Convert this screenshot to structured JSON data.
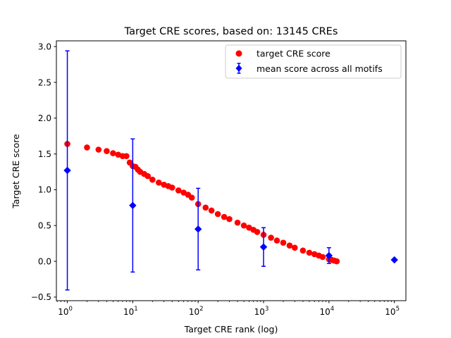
{
  "chart_data": {
    "type": "scatter",
    "title": "Target CRE scores, based on: 13145 CREs",
    "xlabel": "Target CRE rank (log)",
    "ylabel": "Target CRE score",
    "x_scale": "log",
    "xlim": [
      0.68,
      150000
    ],
    "ylim": [
      -0.55,
      3.08
    ],
    "x_ticks": [
      {
        "value": 1,
        "base": "10",
        "exp": "0"
      },
      {
        "value": 10,
        "base": "10",
        "exp": "1"
      },
      {
        "value": 100,
        "base": "10",
        "exp": "2"
      },
      {
        "value": 1000,
        "base": "10",
        "exp": "3"
      },
      {
        "value": 10000,
        "base": "10",
        "exp": "4"
      },
      {
        "value": 100000,
        "base": "10",
        "exp": "5"
      }
    ],
    "y_ticks": [
      {
        "value": -0.5,
        "label": "−0.5"
      },
      {
        "value": 0.0,
        "label": "0.0"
      },
      {
        "value": 0.5,
        "label": "0.5"
      },
      {
        "value": 1.0,
        "label": "1.0"
      },
      {
        "value": 1.5,
        "label": "1.5"
      },
      {
        "value": 2.0,
        "label": "2.0"
      },
      {
        "value": 2.5,
        "label": "2.5"
      },
      {
        "value": 3.0,
        "label": "3.0"
      }
    ],
    "legend_position": "top-right",
    "grid": false,
    "series": [
      {
        "name": "target CRE score",
        "marker": "circle",
        "color": "#ff0000",
        "points": [
          [
            1,
            1.64
          ],
          [
            2,
            1.59
          ],
          [
            3,
            1.56
          ],
          [
            4,
            1.54
          ],
          [
            5,
            1.51
          ],
          [
            6,
            1.49
          ],
          [
            7,
            1.47
          ],
          [
            8,
            1.47
          ],
          [
            9,
            1.38
          ],
          [
            10,
            1.33
          ],
          [
            11,
            1.32
          ],
          [
            12,
            1.28
          ],
          [
            13,
            1.25
          ],
          [
            15,
            1.22
          ],
          [
            17,
            1.19
          ],
          [
            20,
            1.14
          ],
          [
            25,
            1.1
          ],
          [
            30,
            1.07
          ],
          [
            35,
            1.05
          ],
          [
            40,
            1.03
          ],
          [
            50,
            0.99
          ],
          [
            60,
            0.96
          ],
          [
            70,
            0.93
          ],
          [
            80,
            0.89
          ],
          [
            100,
            0.8
          ],
          [
            130,
            0.75
          ],
          [
            160,
            0.71
          ],
          [
            200,
            0.66
          ],
          [
            250,
            0.62
          ],
          [
            300,
            0.59
          ],
          [
            400,
            0.54
          ],
          [
            500,
            0.5
          ],
          [
            600,
            0.47
          ],
          [
            700,
            0.44
          ],
          [
            800,
            0.41
          ],
          [
            1000,
            0.37
          ],
          [
            1300,
            0.33
          ],
          [
            1600,
            0.29
          ],
          [
            2000,
            0.26
          ],
          [
            2500,
            0.22
          ],
          [
            3000,
            0.19
          ],
          [
            4000,
            0.15
          ],
          [
            5000,
            0.12
          ],
          [
            6000,
            0.1
          ],
          [
            7000,
            0.08
          ],
          [
            8000,
            0.06
          ],
          [
            10000,
            0.03
          ],
          [
            11000,
            0.02
          ],
          [
            12000,
            0.01
          ],
          [
            13145,
            0.0
          ]
        ]
      },
      {
        "name": "mean score across all motifs",
        "marker": "diamond",
        "color": "#0000ff",
        "points": [
          {
            "x": 1,
            "y": 1.27,
            "err": 1.67
          },
          {
            "x": 10,
            "y": 0.78,
            "err": 0.93
          },
          {
            "x": 100,
            "y": 0.45,
            "err": 0.57
          },
          {
            "x": 1000,
            "y": 0.2,
            "err": 0.27
          },
          {
            "x": 10000,
            "y": 0.08,
            "err": 0.11
          },
          {
            "x": 100000,
            "y": 0.02,
            "err": 0.0
          }
        ]
      }
    ]
  }
}
